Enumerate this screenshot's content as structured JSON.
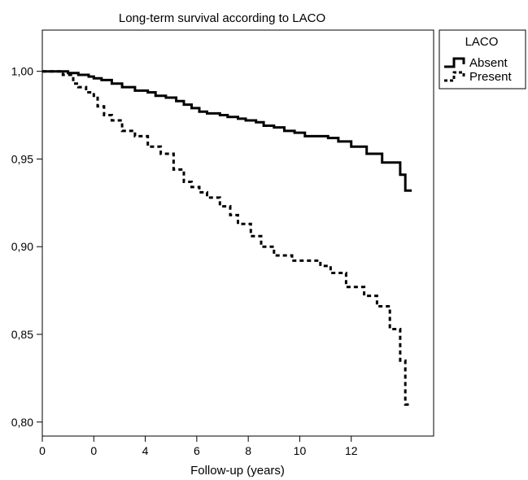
{
  "chart_data": {
    "type": "line",
    "title": "Long-term survival according to LACO",
    "xlabel": "Follow-up (years)",
    "ylabel": "",
    "x_tick_labels": [
      "0",
      "0",
      "4",
      "6",
      "8",
      "10",
      "12"
    ],
    "y_ticks": [
      0.8,
      0.85,
      0.9,
      0.95,
      1.0
    ],
    "y_tick_labels": [
      "0,80",
      "0,85",
      "0,90",
      "0,95",
      "1,00"
    ],
    "xlim": [
      -2,
      13.2
    ],
    "ylim": [
      0.792,
      1.0235
    ],
    "grid": false,
    "legend": {
      "title": "LACO",
      "position": "right-outside"
    },
    "series": [
      {
        "name": "Absent",
        "style": "solid",
        "color": "#000000",
        "x": [
          -2,
          -1.0,
          -0.6,
          -0.2,
          0.0,
          0.3,
          0.7,
          1.1,
          1.6,
          2.1,
          2.4,
          2.8,
          3.2,
          3.5,
          3.8,
          4.1,
          4.4,
          4.7,
          4.9,
          5.2,
          5.6,
          5.9,
          6.3,
          6.6,
          7.0,
          7.4,
          7.8,
          8.2,
          8.6,
          9.1,
          9.5,
          10.0,
          10.6,
          11.2,
          11.9,
          12.1,
          12.35
        ],
        "y": [
          1.0,
          0.999,
          0.998,
          0.997,
          0.996,
          0.995,
          0.993,
          0.991,
          0.989,
          0.988,
          0.986,
          0.985,
          0.983,
          0.981,
          0.979,
          0.977,
          0.976,
          0.976,
          0.975,
          0.974,
          0.973,
          0.972,
          0.971,
          0.969,
          0.968,
          0.966,
          0.965,
          0.963,
          0.963,
          0.962,
          0.96,
          0.957,
          0.953,
          0.948,
          0.941,
          0.932,
          0.932
        ]
      },
      {
        "name": "Present",
        "style": "dashed",
        "color": "#000000",
        "x": [
          -2,
          -1.2,
          -0.8,
          -0.6,
          -0.3,
          0.0,
          0.15,
          0.4,
          0.7,
          1.1,
          1.6,
          2.1,
          2.6,
          3.1,
          3.5,
          3.8,
          4.1,
          4.4,
          4.9,
          5.3,
          5.6,
          6.1,
          6.5,
          7.0,
          7.7,
          8.1,
          8.8,
          9.2,
          9.8,
          10.5,
          11.0,
          11.5,
          11.9,
          12.1,
          12.35
        ],
        "y": [
          1.0,
          0.998,
          0.993,
          0.991,
          0.988,
          0.986,
          0.98,
          0.975,
          0.972,
          0.966,
          0.963,
          0.957,
          0.953,
          0.944,
          0.937,
          0.934,
          0.931,
          0.928,
          0.923,
          0.918,
          0.913,
          0.906,
          0.9,
          0.895,
          0.892,
          0.892,
          0.889,
          0.885,
          0.877,
          0.872,
          0.866,
          0.853,
          0.835,
          0.81,
          0.81
        ]
      }
    ]
  }
}
